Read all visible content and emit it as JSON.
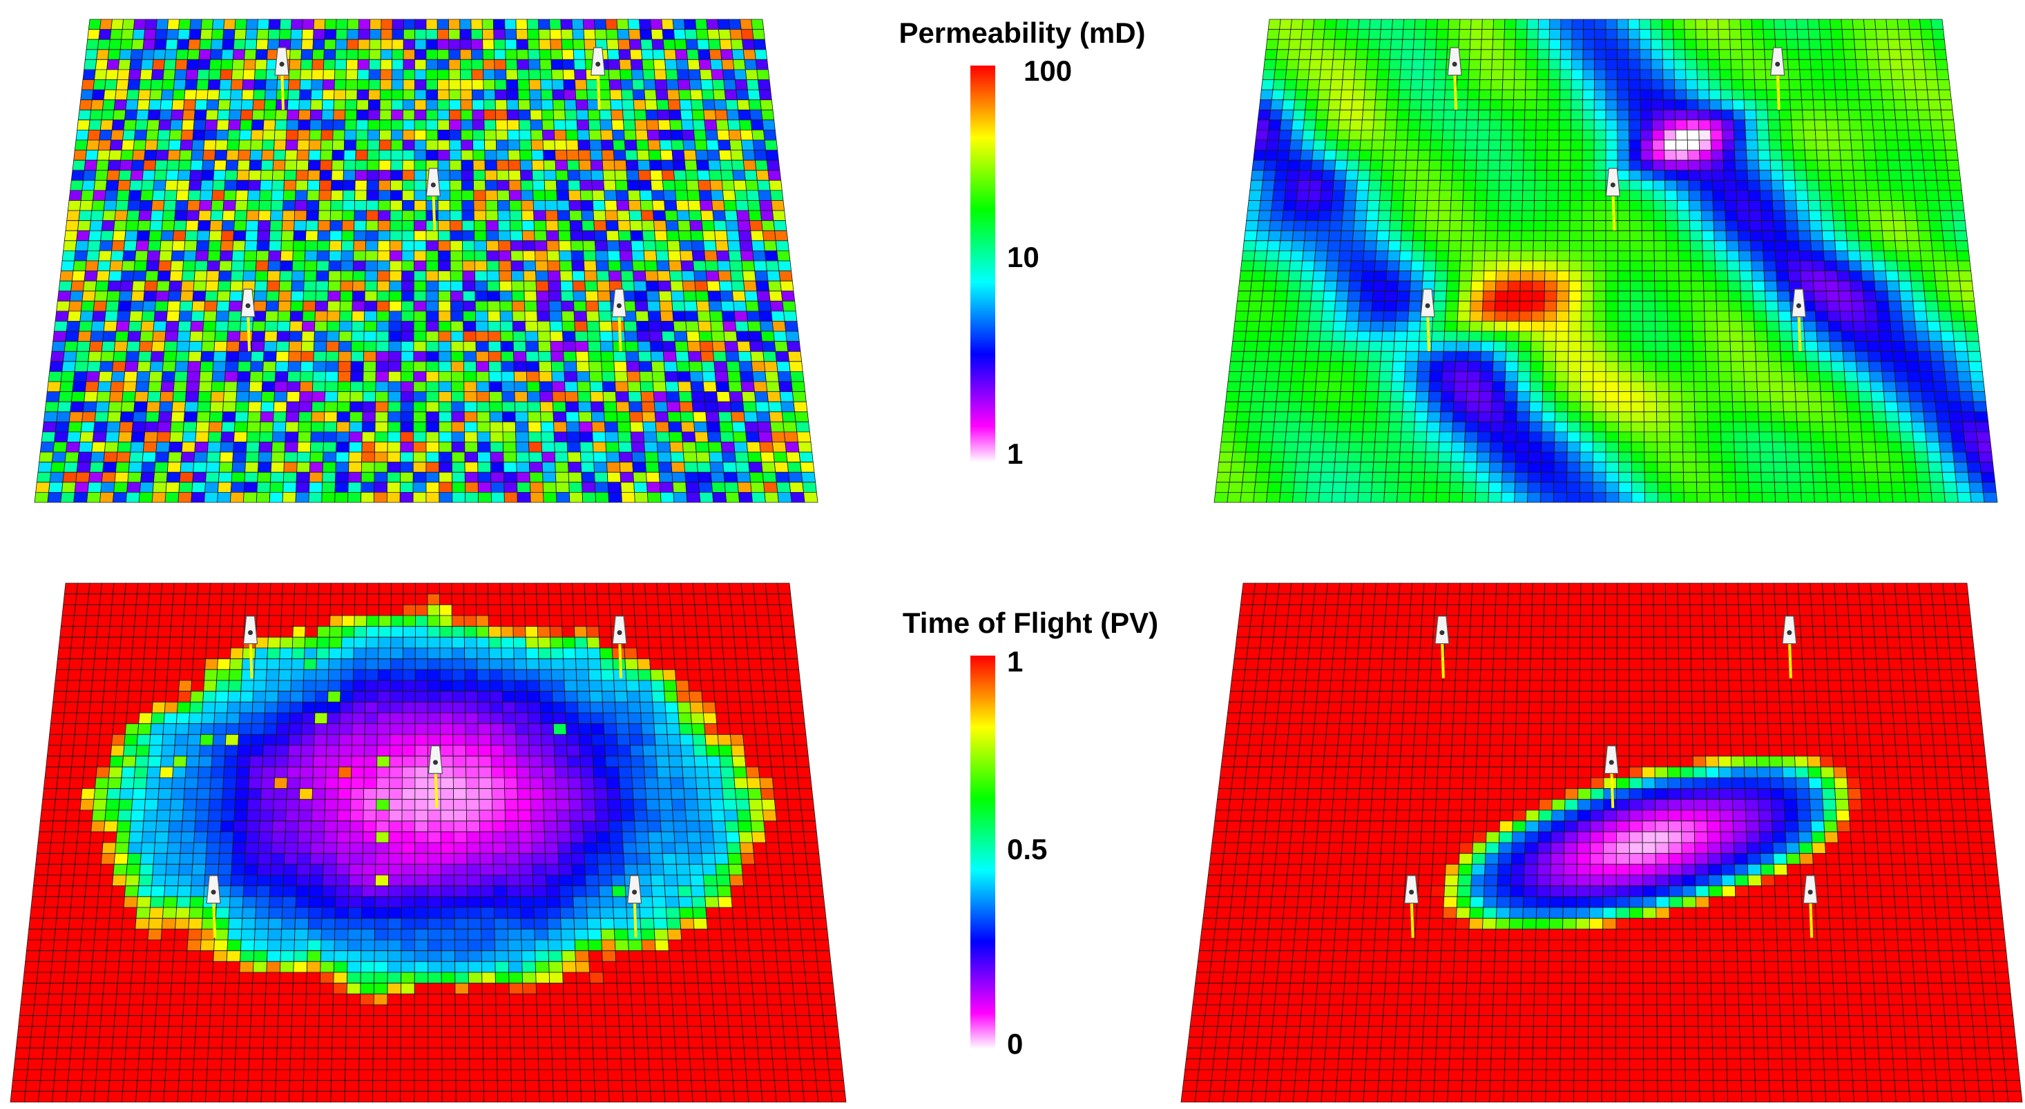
{
  "legends": [
    {
      "title": "Permeability (mD)",
      "ticks": [
        {
          "label": "100",
          "frac": 1.0
        },
        {
          "label": "10",
          "frac": 0.5
        },
        {
          "label": "1",
          "frac": 0.0
        }
      ],
      "colormap": [
        "#ffffff",
        "#ff00ff",
        "#8000ff",
        "#0000ff",
        "#0080ff",
        "#00ffff",
        "#00ff80",
        "#00ff00",
        "#80ff00",
        "#ffff00",
        "#ff8000",
        "#ff0000"
      ]
    },
    {
      "title": "Time of Flight (PV)",
      "ticks": [
        {
          "label": "1",
          "frac": 1.0
        },
        {
          "label": "0.5",
          "frac": 0.5
        },
        {
          "label": "0",
          "frac": 0.0
        }
      ],
      "colormap": [
        "#ffffff",
        "#ff00ff",
        "#8000ff",
        "#0000ff",
        "#0080ff",
        "#00ffff",
        "#00ff80",
        "#00ff00",
        "#80ff00",
        "#ffff00",
        "#ff8000",
        "#ff0000"
      ]
    }
  ],
  "panels": [
    {
      "id": "perm-random",
      "field": "random_permeability",
      "wells": [
        [
          0.29,
          0.13
        ],
        [
          0.75,
          0.13
        ],
        [
          0.51,
          0.38
        ],
        [
          0.26,
          0.63
        ],
        [
          0.76,
          0.63
        ]
      ]
    },
    {
      "id": "perm-correlated",
      "field": "correlated_permeability",
      "wells": [
        [
          0.28,
          0.13
        ],
        [
          0.75,
          0.13
        ],
        [
          0.51,
          0.38
        ],
        [
          0.26,
          0.63
        ],
        [
          0.76,
          0.63
        ]
      ]
    },
    {
      "id": "tof-random",
      "field": "time_of_flight_random",
      "wells": [
        [
          0.26,
          0.13
        ],
        [
          0.76,
          0.13
        ],
        [
          0.51,
          0.38
        ],
        [
          0.23,
          0.63
        ],
        [
          0.76,
          0.63
        ]
      ]
    },
    {
      "id": "tof-correlated",
      "field": "time_of_flight_correlated",
      "wells": [
        [
          0.28,
          0.13
        ],
        [
          0.75,
          0.13
        ],
        [
          0.51,
          0.38
        ],
        [
          0.26,
          0.63
        ],
        [
          0.76,
          0.63
        ]
      ]
    }
  ]
}
